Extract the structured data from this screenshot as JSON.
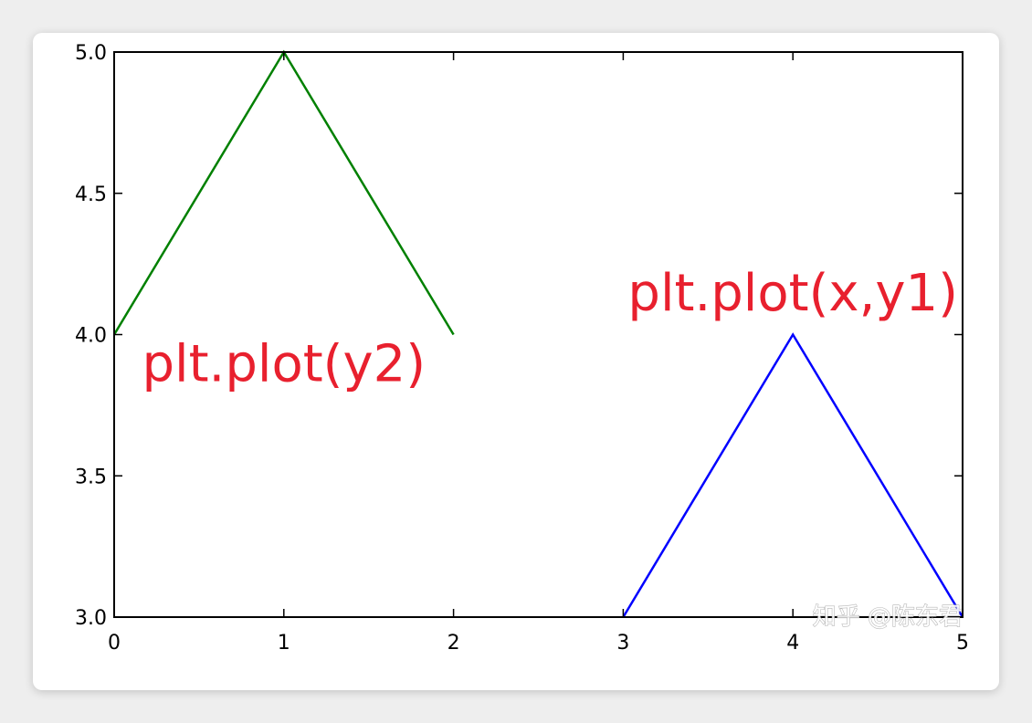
{
  "chart_data": {
    "type": "line",
    "title": "",
    "xlabel": "",
    "ylabel": "",
    "xlim": [
      0,
      5
    ],
    "ylim": [
      3.0,
      5.0
    ],
    "x_ticks": [
      "0",
      "1",
      "2",
      "3",
      "4",
      "5"
    ],
    "y_ticks": [
      "3.0",
      "3.5",
      "4.0",
      "4.5",
      "5.0"
    ],
    "grid": false,
    "series": [
      {
        "color": "#008000",
        "x": [
          0,
          1,
          2
        ],
        "y": [
          4,
          5,
          4
        ]
      },
      {
        "color": "#0000ff",
        "x": [
          3,
          4,
          5
        ],
        "y": [
          3,
          4,
          3
        ]
      }
    ],
    "annotations": [
      {
        "text": "plt.plot(y2)",
        "x": 1,
        "y": 3.9,
        "color": "#e8202e"
      },
      {
        "text": "plt.plot(x,y1)",
        "x": 4,
        "y": 4.15,
        "color": "#e8202e"
      }
    ]
  },
  "watermark": "知乎 @陈东君"
}
